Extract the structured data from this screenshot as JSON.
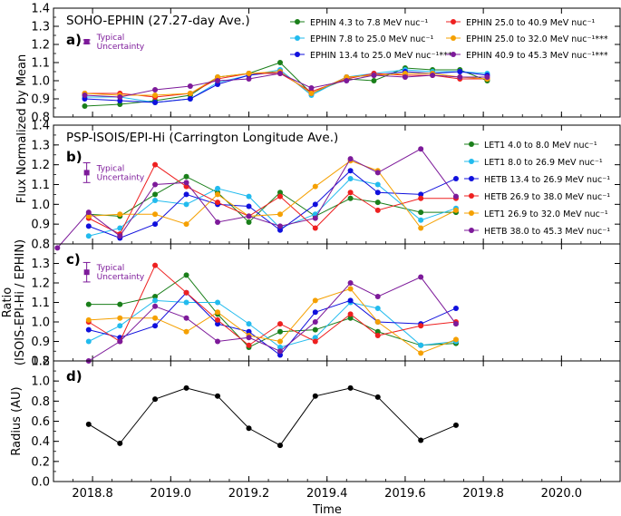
{
  "figure": {
    "shared_ylabel": "Flux Normalized by Mean",
    "xlabel": "Time",
    "x_ticks": [
      2018.8,
      2019.0,
      2019.2,
      2019.4,
      2019.6,
      2019.8,
      2020.0
    ],
    "x_range": [
      2018.7,
      2020.15
    ],
    "uncertainty_label": [
      "Typical",
      "Uncertainty"
    ]
  },
  "chart_data": [
    {
      "id": "a",
      "type": "line",
      "panel_letter": "a)",
      "title": "SOHO-EPHIN (27.27-day Ave.)",
      "ylim": [
        0.8,
        1.4
      ],
      "y_ticks": [
        0.8,
        0.9,
        1.0,
        1.1,
        1.2,
        1.3,
        1.4
      ],
      "x": [
        2018.78,
        2018.87,
        2018.96,
        2019.05,
        2019.12,
        2019.2,
        2019.28,
        2019.36,
        2019.45,
        2019.52,
        2019.6,
        2019.67,
        2019.74,
        2019.81
      ],
      "series": [
        {
          "name": "EPHIN 4.3 to 7.8 MeV nuc⁻¹",
          "color": "#1a7f1a",
          "values": [
            0.86,
            0.87,
            0.89,
            0.92,
            1.02,
            1.04,
            1.1,
            0.93,
            1.01,
            1.0,
            1.07,
            1.06,
            1.06,
            1.0
          ]
        },
        {
          "name": "EPHIN 7.8 to 25.0 MeV nuc⁻¹",
          "color": "#22bbee",
          "values": [
            0.91,
            0.91,
            0.88,
            0.9,
            0.99,
            1.03,
            1.06,
            0.92,
            1.02,
            1.04,
            1.06,
            1.05,
            1.05,
            1.04
          ]
        },
        {
          "name": "EPHIN 13.4 to 25.0 MeV nuc⁻¹***",
          "color": "#1010dd",
          "values": [
            0.9,
            0.89,
            0.88,
            0.9,
            0.98,
            1.03,
            1.05,
            0.93,
            1.02,
            1.03,
            1.05,
            1.04,
            1.05,
            1.03
          ]
        },
        {
          "name": "EPHIN 25.0 to 40.9 MeV nuc⁻¹",
          "color": "#ee2020",
          "values": [
            0.93,
            0.93,
            0.91,
            0.93,
            1.01,
            1.04,
            1.04,
            0.94,
            1.01,
            1.04,
            1.03,
            1.03,
            1.01,
            1.01
          ]
        },
        {
          "name": "EPHIN 25.0 to 32.0 MeV nuc⁻¹***",
          "color": "#f5a000",
          "values": [
            0.93,
            0.92,
            0.92,
            0.93,
            1.02,
            1.04,
            1.05,
            0.93,
            1.02,
            1.03,
            1.04,
            1.04,
            1.02,
            1.01
          ]
        },
        {
          "name": "EPHIN 40.9 to 45.3 MeV nuc⁻¹***",
          "color": "#7d1a9a",
          "values": [
            0.92,
            0.91,
            0.95,
            0.97,
            1.0,
            1.01,
            1.04,
            0.96,
            1.0,
            1.03,
            1.02,
            1.03,
            1.02,
            1.02
          ]
        }
      ],
      "uncertainty": {
        "x": 2018.785,
        "y": 1.215,
        "err": 0.01,
        "color": "#7d1a9a"
      },
      "legend": "top-right (two columns)"
    },
    {
      "id": "b",
      "type": "line",
      "panel_letter": "b)",
      "title": "PSP-ISOIS/EPI-Hi (Carrington Longitude Ave.)",
      "ylim": [
        0.8,
        1.4
      ],
      "y_ticks": [
        0.8,
        0.9,
        1.0,
        1.1,
        1.2,
        1.3,
        1.4
      ],
      "x": [
        2018.71,
        2018.79,
        2018.87,
        2018.96,
        2019.04,
        2019.12,
        2019.2,
        2019.28,
        2019.37,
        2019.46,
        2019.53,
        2019.64,
        2019.73
      ],
      "series": [
        {
          "name": "LET1 4.0 to 8.0 MeV nuc⁻¹",
          "color": "#1a7f1a",
          "values": [
            null,
            0.95,
            0.94,
            1.05,
            1.14,
            1.06,
            0.91,
            1.06,
            0.94,
            1.03,
            1.01,
            0.96,
            0.96
          ]
        },
        {
          "name": "LET1 8.0 to 26.9 MeV nuc⁻¹",
          "color": "#22bbee",
          "values": [
            null,
            0.84,
            0.88,
            1.02,
            1.0,
            1.08,
            1.04,
            0.88,
            0.95,
            1.13,
            1.1,
            0.92,
            0.98
          ]
        },
        {
          "name": "HETB 13.4 to 26.9 MeV nuc⁻¹",
          "color": "#1010dd",
          "values": [
            null,
            0.89,
            0.83,
            0.9,
            1.05,
            1.0,
            0.99,
            0.87,
            1.0,
            1.17,
            1.06,
            1.05,
            1.13
          ]
        },
        {
          "name": "HETB 26.9 to 38.0 MeV nuc⁻¹",
          "color": "#ee2020",
          "values": [
            null,
            0.93,
            0.85,
            1.2,
            1.09,
            1.01,
            0.94,
            1.04,
            0.88,
            1.06,
            0.97,
            1.03,
            1.03
          ]
        },
        {
          "name": "LET1 26.9 to 32.0 MeV nuc⁻¹",
          "color": "#f5a000",
          "values": [
            null,
            0.94,
            0.95,
            0.95,
            0.9,
            1.05,
            0.94,
            0.95,
            1.09,
            1.22,
            1.17,
            0.88,
            0.97
          ]
        },
        {
          "name": "HETB 38.0 to 45.3 MeV nuc⁻¹",
          "color": "#7d1a9a",
          "values": [
            0.78,
            0.96,
            0.84,
            1.1,
            1.11,
            0.91,
            0.94,
            0.89,
            0.93,
            1.23,
            1.16,
            1.28,
            1.04
          ]
        }
      ],
      "uncertainty": {
        "x": 2018.785,
        "y": 1.16,
        "err": 0.05,
        "color": "#7d1a9a"
      },
      "legend": "right"
    },
    {
      "id": "c",
      "type": "line",
      "panel_letter": "c)",
      "ylabel": "Ratio\n(ISOIS-EPI-Hi / EPHIN)",
      "ylim": [
        0.8,
        1.4
      ],
      "y_ticks": [
        0.8,
        0.9,
        1.0,
        1.1,
        1.2,
        1.3
      ],
      "x": [
        2018.79,
        2018.87,
        2018.96,
        2019.04,
        2019.12,
        2019.2,
        2019.28,
        2019.37,
        2019.46,
        2019.53,
        2019.64,
        2019.73
      ],
      "series": [
        {
          "name": "LET1 4.0 to 8.0 MeV nuc⁻¹",
          "color": "#1a7f1a",
          "values": [
            1.09,
            1.09,
            1.13,
            1.24,
            1.04,
            0.87,
            0.95,
            0.96,
            1.02,
            0.95,
            0.88,
            0.89
          ]
        },
        {
          "name": "LET1 8.0 to 26.9 MeV nuc⁻¹",
          "color": "#22bbee",
          "values": [
            0.9,
            0.98,
            1.11,
            1.1,
            1.1,
            0.99,
            0.87,
            0.92,
            1.1,
            1.07,
            0.88,
            0.9
          ]
        },
        {
          "name": "HETB 13.4 to 26.9 MeV nuc⁻¹",
          "color": "#1010dd",
          "values": [
            0.96,
            0.92,
            0.98,
            1.15,
            0.99,
            0.95,
            0.83,
            1.05,
            1.11,
            1.0,
            0.99,
            1.07
          ]
        },
        {
          "name": "HETB 26.9 to 38.0 MeV nuc⁻¹",
          "color": "#ee2020",
          "values": [
            1.0,
            0.9,
            1.29,
            1.15,
            1.01,
            0.88,
            0.99,
            0.9,
            1.04,
            0.93,
            0.98,
            1.0
          ]
        },
        {
          "name": "LET1 26.9 to 32.0 MeV nuc⁻¹",
          "color": "#f5a000",
          "values": [
            1.01,
            1.02,
            1.02,
            0.95,
            1.05,
            0.93,
            0.9,
            1.11,
            1.17,
            1.0,
            0.84,
            0.91
          ]
        },
        {
          "name": "HETB 38.0 to 45.3 MeV nuc⁻¹",
          "color": "#7d1a9a",
          "values": [
            0.8,
            0.9,
            1.08,
            1.02,
            0.9,
            0.92,
            0.85,
            1.0,
            1.2,
            1.13,
            1.23,
            0.99
          ]
        }
      ],
      "uncertainty": {
        "x": 2018.785,
        "y": 1.255,
        "err": 0.05,
        "color": "#7d1a9a"
      }
    },
    {
      "id": "d",
      "type": "line",
      "panel_letter": "d)",
      "ylabel": "Radius (AU)",
      "ylim": [
        0.0,
        1.2
      ],
      "y_ticks": [
        0.0,
        0.2,
        0.4,
        0.6,
        0.8,
        1.0,
        1.2
      ],
      "x": [
        2018.79,
        2018.87,
        2018.96,
        2019.04,
        2019.12,
        2019.2,
        2019.28,
        2019.37,
        2019.46,
        2019.53,
        2019.64,
        2019.73
      ],
      "series": [
        {
          "name": "Radius",
          "color": "#000000",
          "values": [
            0.57,
            0.38,
            0.82,
            0.93,
            0.85,
            0.53,
            0.36,
            0.85,
            0.93,
            0.84,
            0.41,
            0.56
          ]
        }
      ]
    }
  ]
}
